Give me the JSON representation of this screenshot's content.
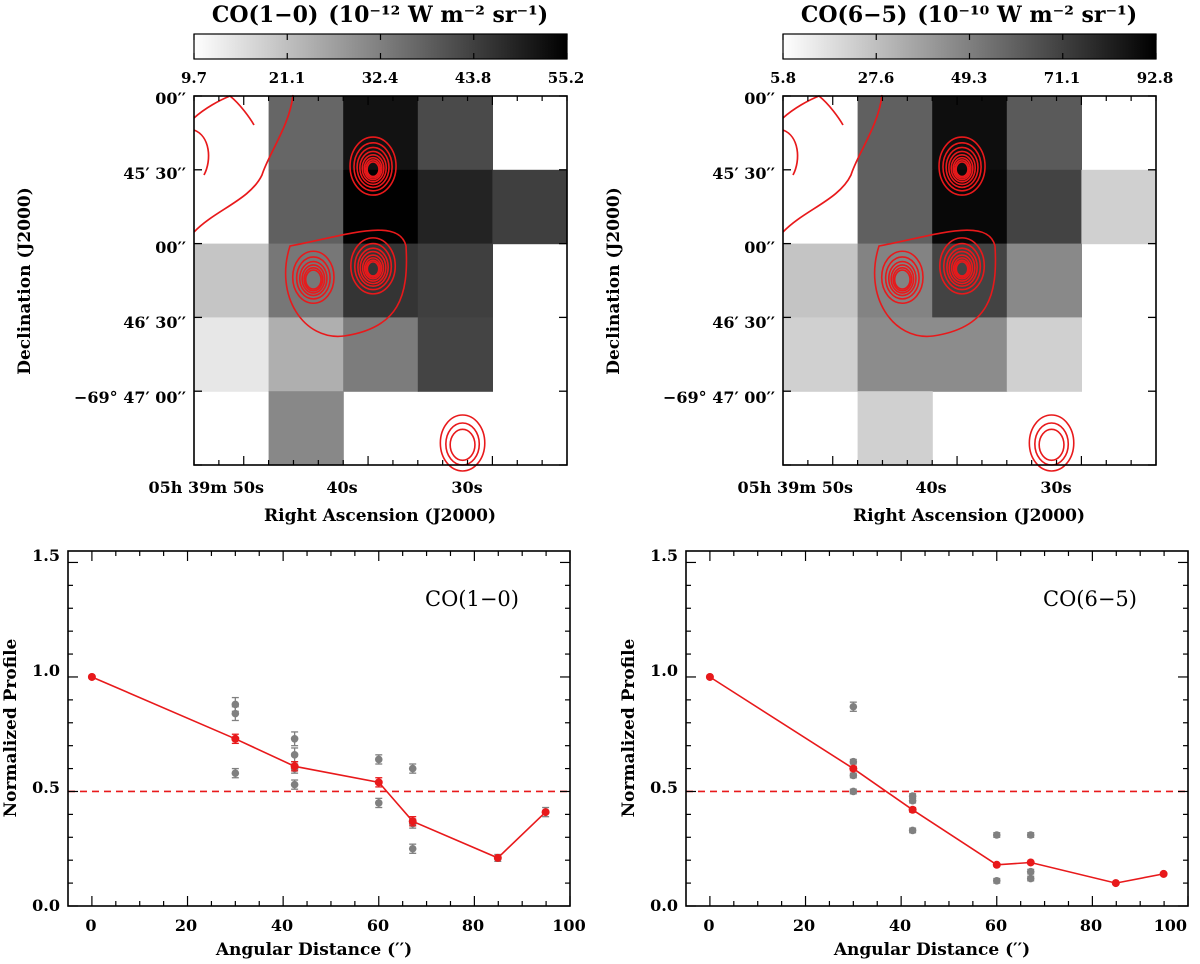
{
  "chart_data": [
    {
      "type": "heatmap",
      "id": "map_co10",
      "colorbar": {
        "title_main": "CO(1−0)",
        "title_unit": "(10⁻¹² W m⁻² sr⁻¹)",
        "tick_labels": [
          "9.7",
          "21.1",
          "32.4",
          "43.8",
          "55.2"
        ],
        "range": [
          9.7,
          55.2
        ]
      },
      "grid": [
        [
          null,
          37,
          52,
          42,
          null
        ],
        [
          null,
          38,
          55,
          49,
          44
        ],
        [
          20,
          34,
          46,
          44,
          null
        ],
        [
          14,
          24,
          33,
          43,
          null
        ],
        [
          null,
          31,
          null,
          null,
          null
        ]
      ],
      "contours": [
        {
          "center": [
            2.4,
            0.95
          ],
          "levels": [
            5.6,
            4.6,
            3.8,
            3.1,
            2.5,
            2.0,
            1.6,
            1.25
          ]
        },
        {
          "center": [
            2.4,
            2.3
          ],
          "levels": [
            5.4,
            4.4,
            3.6,
            3.0,
            2.4,
            1.9,
            1.5,
            1.2
          ]
        },
        {
          "center": [
            1.6,
            2.45
          ],
          "levels": [
            5.0,
            4.0,
            3.2,
            2.6,
            2.1,
            1.7
          ]
        },
        {
          "center": [
            3.6,
            4.7
          ],
          "levels": [
            5.4,
            4.0,
            2.9
          ]
        }
      ],
      "ylabel": "Declination (J2000)",
      "xlabel": "Right Ascension (J2000)",
      "y_ticks": [
        "00′′",
        "45′ 30′′",
        "00′′",
        "46′ 30′′",
        "−69° 47′ 00′′"
      ],
      "x_ticks": [
        "05h 39m 50s",
        "40s",
        "30s"
      ]
    },
    {
      "type": "heatmap",
      "id": "map_co65",
      "colorbar": {
        "title_main": "CO(6−5)",
        "title_unit": "(10⁻¹⁰ W m⁻² sr⁻¹)",
        "tick_labels": [
          "5.8",
          "27.6",
          "49.3",
          "71.1",
          "92.8"
        ],
        "range": [
          5.8,
          92.8
        ]
      },
      "grid": [
        [
          null,
          60,
          88,
          62,
          null
        ],
        [
          null,
          60,
          90,
          70,
          22
        ],
        [
          26,
          48,
          70,
          46,
          null
        ],
        [
          22,
          45,
          45,
          22,
          null
        ],
        [
          null,
          22,
          null,
          null,
          null
        ]
      ],
      "contours": [
        {
          "center": [
            2.4,
            0.95
          ],
          "levels": [
            5.6,
            4.6,
            3.8,
            3.1,
            2.5,
            2.0,
            1.6,
            1.25
          ]
        },
        {
          "center": [
            2.4,
            2.3
          ],
          "levels": [
            5.4,
            4.4,
            3.6,
            3.0,
            2.4,
            1.9,
            1.5,
            1.2
          ]
        },
        {
          "center": [
            1.6,
            2.45
          ],
          "levels": [
            5.0,
            4.0,
            3.2,
            2.6,
            2.1,
            1.7
          ]
        },
        {
          "center": [
            3.6,
            4.7
          ],
          "levels": [
            5.4,
            4.0,
            2.9
          ]
        }
      ],
      "ylabel": "Declination (J2000)",
      "xlabel": "Right Ascension (J2000)",
      "y_ticks": [
        "00′′",
        "45′ 30′′",
        "00′′",
        "46′ 30′′",
        "−69° 47′ 00′′"
      ],
      "x_ticks": [
        "05h 39m 50s",
        "40s",
        "30s"
      ]
    },
    {
      "type": "scatter",
      "id": "profile_co10",
      "label": "CO(1−0)",
      "xlabel": "Angular Distance (′′)",
      "ylabel": "Normalized Profile",
      "xlim": [
        -5,
        100
      ],
      "ylim": [
        0,
        1.55
      ],
      "x_tick_labels": [
        "0",
        "20",
        "40",
        "60",
        "80",
        "100"
      ],
      "y_tick_labels": [
        "0.0",
        "0.5",
        "1.0",
        "1.5"
      ],
      "reference_line": 0.5,
      "points": [
        {
          "x": 0,
          "y": 1.0,
          "err": 0.0
        },
        {
          "x": 30,
          "y": 0.88,
          "err": 0.03
        },
        {
          "x": 30,
          "y": 0.84,
          "err": 0.03
        },
        {
          "x": 30,
          "y": 0.58,
          "err": 0.02
        },
        {
          "x": 42.4,
          "y": 0.73,
          "err": 0.03
        },
        {
          "x": 42.4,
          "y": 0.66,
          "err": 0.03
        },
        {
          "x": 42.4,
          "y": 0.6,
          "err": 0.02
        },
        {
          "x": 42.4,
          "y": 0.53,
          "err": 0.02
        },
        {
          "x": 60,
          "y": 0.64,
          "err": 0.02
        },
        {
          "x": 60,
          "y": 0.45,
          "err": 0.02
        },
        {
          "x": 67.1,
          "y": 0.6,
          "err": 0.02
        },
        {
          "x": 67.1,
          "y": 0.36,
          "err": 0.02
        },
        {
          "x": 67.1,
          "y": 0.25,
          "err": 0.02
        },
        {
          "x": 84.9,
          "y": 0.21,
          "err": 0.015
        },
        {
          "x": 94.9,
          "y": 0.41,
          "err": 0.02
        }
      ],
      "mean": [
        {
          "x": 0,
          "y": 1.0,
          "err": 0.0
        },
        {
          "x": 30,
          "y": 0.73,
          "err": 0.02
        },
        {
          "x": 42.4,
          "y": 0.61,
          "err": 0.02
        },
        {
          "x": 60,
          "y": 0.54,
          "err": 0.02
        },
        {
          "x": 67.1,
          "y": 0.37,
          "err": 0.02
        },
        {
          "x": 84.9,
          "y": 0.21,
          "err": 0.0
        },
        {
          "x": 94.9,
          "y": 0.41,
          "err": 0.0
        }
      ]
    },
    {
      "type": "scatter",
      "id": "profile_co65",
      "label": "CO(6−5)",
      "xlabel": "Angular Distance (′′)",
      "ylabel": "Normalized Profile",
      "xlim": [
        -5,
        100
      ],
      "ylim": [
        0,
        1.55
      ],
      "x_tick_labels": [
        "0",
        "20",
        "40",
        "60",
        "80",
        "100"
      ],
      "y_tick_labels": [
        "0.0",
        "0.5",
        "1.0",
        "1.5"
      ],
      "reference_line": 0.5,
      "points": [
        {
          "x": 0,
          "y": 1.0,
          "err": 0.0
        },
        {
          "x": 30,
          "y": 0.87,
          "err": 0.02
        },
        {
          "x": 30,
          "y": 0.63,
          "err": 0.01
        },
        {
          "x": 30,
          "y": 0.57,
          "err": 0.01
        },
        {
          "x": 30,
          "y": 0.5,
          "err": 0.01
        },
        {
          "x": 42.4,
          "y": 0.48,
          "err": 0.01
        },
        {
          "x": 42.4,
          "y": 0.46,
          "err": 0.01
        },
        {
          "x": 42.4,
          "y": 0.33,
          "err": 0.01
        },
        {
          "x": 60,
          "y": 0.31,
          "err": 0.01
        },
        {
          "x": 60,
          "y": 0.11,
          "err": 0.01
        },
        {
          "x": 67.1,
          "y": 0.31,
          "err": 0.01
        },
        {
          "x": 67.1,
          "y": 0.15,
          "err": 0.01
        },
        {
          "x": 67.1,
          "y": 0.12,
          "err": 0.01
        },
        {
          "x": 84.9,
          "y": 0.1,
          "err": 0.0
        },
        {
          "x": 94.9,
          "y": 0.14,
          "err": 0.0
        }
      ],
      "mean": [
        {
          "x": 0,
          "y": 1.0,
          "err": 0.0
        },
        {
          "x": 30,
          "y": 0.6,
          "err": 0.01
        },
        {
          "x": 42.4,
          "y": 0.42,
          "err": 0.01
        },
        {
          "x": 60,
          "y": 0.18,
          "err": 0.0
        },
        {
          "x": 67.1,
          "y": 0.19,
          "err": 0.0
        },
        {
          "x": 84.9,
          "y": 0.1,
          "err": 0.0
        },
        {
          "x": 94.9,
          "y": 0.14,
          "err": 0.0
        }
      ]
    }
  ],
  "colors": {
    "contour": "#e8191b",
    "mean": "#e8191b",
    "points": "#808080",
    "reference": "#e8191b"
  }
}
